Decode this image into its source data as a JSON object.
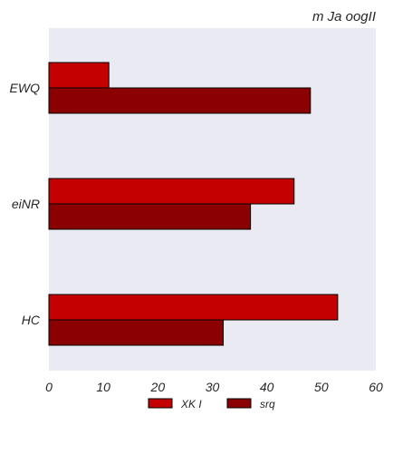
{
  "chart_data": {
    "type": "bar",
    "orientation": "horizontal",
    "title": "m Ja oogII",
    "title_position": "right",
    "xlabel": "",
    "ylabel": "",
    "categories": [
      "EWQ",
      "eiNR",
      "HC"
    ],
    "series": [
      {
        "name": "XK I",
        "values": [
          11,
          45,
          53
        ],
        "color": "#c40000"
      },
      {
        "name": "srq",
        "values": [
          48,
          37,
          32
        ],
        "color": "#8b0000"
      }
    ],
    "xlim": [
      0,
      60
    ],
    "xticks": [
      "0",
      "10",
      "20",
      "30",
      "40",
      "50",
      "60"
    ],
    "grid": false,
    "plot_background": "#eaeaf2",
    "bar_edge_color": "#000000",
    "legend_position": "bottom-center"
  }
}
